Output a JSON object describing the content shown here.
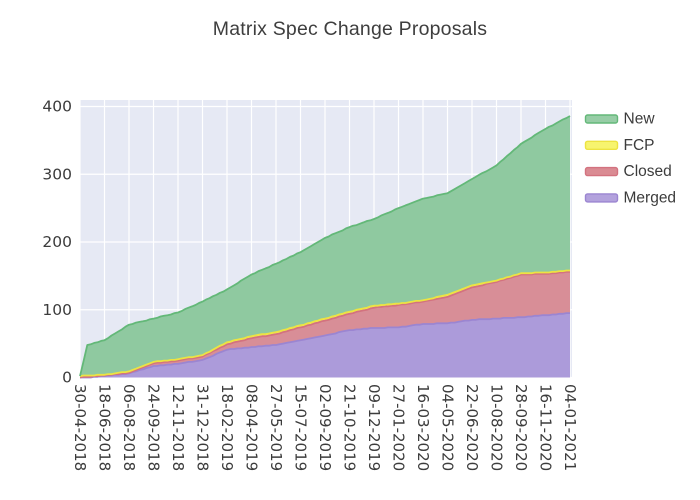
{
  "title": "Matrix Spec Change Proposals",
  "colors": {
    "plot_background": "#E6E9F4",
    "gridline": "#FFFFFF",
    "text": "#3C3C3C",
    "title_text": "#3E3E3E"
  },
  "legend": {
    "items": [
      {
        "label": "New",
        "fill": "#97CDA6",
        "line": "#63B878"
      },
      {
        "label": "FCP",
        "fill": "#F7F46E",
        "line": "#EDE342"
      },
      {
        "label": "Closed",
        "fill": "#DA8B93",
        "line": "#D3727F"
      },
      {
        "label": "Merged",
        "fill": "#B3A2DD",
        "line": "#9B85D1"
      }
    ]
  },
  "chart_data": {
    "type": "area",
    "stacked": true,
    "title": "Matrix Spec Change Proposals",
    "xlabel": "",
    "ylabel": "",
    "ylim": [
      0,
      400
    ],
    "y_ticks": [
      0,
      100,
      200,
      300,
      400
    ],
    "grid": true,
    "legend_position": "right",
    "x_tick_labels": [
      "30-04-2018",
      "18-06-2018",
      "06-08-2018",
      "24-09-2018",
      "12-11-2018",
      "31-12-2018",
      "18-02-2019",
      "08-04-2019",
      "27-05-2019",
      "15-07-2019",
      "02-09-2019",
      "21-10-2019",
      "09-12-2019",
      "27-01-2020",
      "16-03-2020",
      "04-05-2020",
      "22-06-2020",
      "10-08-2020",
      "28-09-2020",
      "16-11-2020",
      "04-01-2021"
    ],
    "x_note": "x values below are in tick-index units (0 = 30-04-2018, 20 = 04-01-2021); 0.3 captures the steep initial jump in mid-May 2018",
    "x_samples": [
      0,
      0.3,
      1,
      2,
      3,
      4,
      5,
      6,
      7,
      8,
      9,
      10,
      11,
      12,
      13,
      14,
      15,
      16,
      17,
      18,
      19,
      20
    ],
    "series": [
      {
        "name": "Merged",
        "fill": "#AC9BDA",
        "line": "#9B85D1",
        "values": [
          0,
          0,
          2,
          6,
          17,
          20,
          26,
          41,
          45,
          48,
          55,
          62,
          70,
          73,
          74,
          79,
          80,
          85,
          87,
          89,
          92,
          95
        ]
      },
      {
        "name": "Closed",
        "fill": "#D88E97",
        "line": "#D3727F",
        "values": [
          0,
          1,
          1,
          1,
          4,
          5,
          5,
          8,
          13,
          16,
          19,
          22,
          24,
          30,
          33,
          33,
          39,
          48,
          54,
          63,
          61,
          61
        ]
      },
      {
        "name": "FCP",
        "fill": "#F5F26A",
        "line": "#EDE342",
        "values": [
          2,
          2,
          1,
          2,
          2,
          2,
          2,
          3,
          3,
          3,
          3,
          3,
          3,
          3,
          2,
          2,
          3,
          3,
          2,
          2,
          2,
          2
        ]
      },
      {
        "name": "New",
        "fill": "#8FC9A0",
        "line": "#63B878",
        "values": [
          0,
          45,
          51,
          69,
          64,
          69,
          79,
          78,
          91,
          101,
          108,
          119,
          125,
          128,
          141,
          150,
          150,
          157,
          170,
          191,
          212,
          228
        ]
      }
    ]
  }
}
